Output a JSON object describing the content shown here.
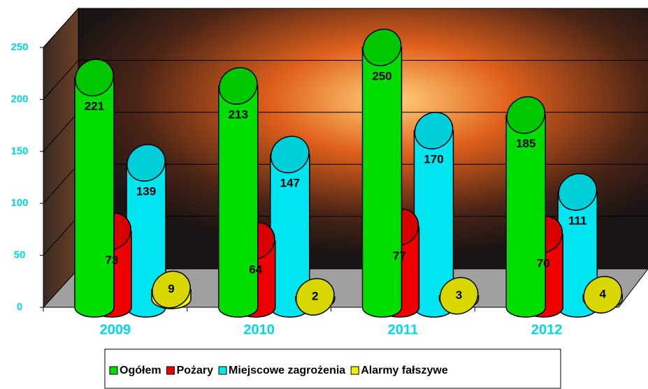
{
  "chart_data": {
    "type": "bar3d",
    "categories": [
      "2009",
      "2010",
      "2011",
      "2012"
    ],
    "series": [
      {
        "name": "Ogółem",
        "color": "#00dd00",
        "values": [
          221,
          213,
          250,
          185
        ]
      },
      {
        "name": "Pożary",
        "color": "#ee0000",
        "values": [
          73,
          64,
          77,
          70
        ]
      },
      {
        "name": "Miejscowe zagrożenia",
        "color": "#00e5f0",
        "values": [
          139,
          147,
          170,
          111
        ]
      },
      {
        "name": "Alarmy fałszywe",
        "color": "#f0f000",
        "values": [
          9,
          2,
          3,
          4
        ]
      }
    ],
    "ylim": [
      0,
      250
    ],
    "yticks": [
      0,
      50,
      100,
      150,
      200,
      250
    ],
    "grid": true,
    "legend": "bottom"
  }
}
